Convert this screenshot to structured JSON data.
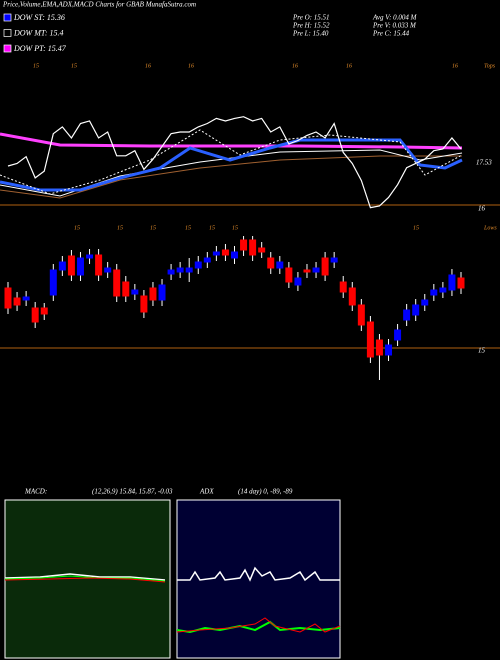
{
  "header": {
    "title": "Price,Volume,EMA,ADX,MACD Charts for GBAB MunafaSutra.com",
    "legend": [
      {
        "label": "DOW ST: 15.36",
        "color": "#0000ff"
      },
      {
        "label": "DOW MT: 15.4",
        "color": "#000000"
      },
      {
        "label": "DOW PT: 15.47",
        "color": "#ff00ff"
      }
    ],
    "stats": [
      "Pre  O: 15.51",
      "Avg V: 0.004  M",
      "Pre  H: 15.52",
      "Pre  V: 0.033 M",
      "Pre  L: 15.40",
      "Pre  C: 15.44"
    ]
  },
  "top_panel": {
    "tops_label": "Tops",
    "date_labels": [
      "15",
      "15",
      "16",
      "16",
      "16",
      "16",
      "16"
    ],
    "level_labels": [
      "17.53",
      "16"
    ]
  },
  "lows_panel": {
    "lows_label": "Lows",
    "date_labels": [
      "15",
      "15",
      "15",
      "15",
      "15",
      "15",
      "15"
    ]
  },
  "chart_data": {
    "type": "candlestick",
    "up_color": "#0000ff",
    "down_color": "#ff0000",
    "ylim": [
      14,
      16.25
    ],
    "yticks": [
      15
    ],
    "open": [
      15.6,
      15.5,
      15.48,
      15.4,
      15.4,
      15.53,
      15.78,
      15.92,
      15.73,
      15.9,
      15.93,
      15.76,
      15.78,
      15.66,
      15.54,
      15.52,
      15.6,
      15.48,
      15.74,
      15.76,
      15.76,
      15.8,
      15.86,
      15.93,
      15.98,
      15.9,
      16.08,
      16.08,
      16.0,
      15.9,
      15.8,
      15.8,
      15.63,
      15.78,
      15.76,
      15.9,
      15.86,
      15.66,
      15.6,
      15.43,
      15.26,
      15.08,
      14.93,
      15.08,
      15.28,
      15.33,
      15.43,
      15.53,
      15.56,
      15.58,
      15.7
    ],
    "high": [
      15.66,
      15.56,
      15.57,
      15.46,
      15.45,
      15.84,
      15.92,
      15.98,
      15.96,
      15.99,
      15.99,
      15.86,
      15.84,
      15.72,
      15.64,
      15.58,
      15.66,
      15.69,
      15.84,
      15.86,
      15.9,
      15.92,
      15.96,
      16.02,
      16.04,
      16.02,
      16.12,
      16.12,
      16.06,
      15.96,
      15.92,
      15.86,
      15.76,
      15.84,
      15.86,
      15.96,
      15.96,
      15.72,
      15.66,
      15.49,
      15.32,
      15.14,
      15.09,
      15.24,
      15.44,
      15.49,
      15.54,
      15.64,
      15.66,
      15.79,
      15.76
    ],
    "low": [
      15.34,
      15.37,
      15.42,
      15.2,
      15.28,
      15.47,
      15.72,
      15.67,
      15.67,
      15.84,
      15.67,
      15.7,
      15.46,
      15.46,
      15.48,
      15.3,
      15.42,
      15.42,
      15.68,
      15.7,
      15.66,
      15.74,
      15.8,
      15.87,
      15.87,
      15.84,
      15.92,
      15.87,
      15.9,
      15.74,
      15.74,
      15.6,
      15.57,
      15.7,
      15.7,
      15.67,
      15.8,
      15.5,
      15.37,
      15.17,
      14.85,
      14.68,
      14.87,
      15.02,
      15.22,
      15.27,
      15.37,
      15.47,
      15.5,
      15.52,
      15.54
    ],
    "close": [
      15.4,
      15.43,
      15.51,
      15.26,
      15.34,
      15.78,
      15.86,
      15.73,
      15.9,
      15.93,
      15.73,
      15.8,
      15.52,
      15.52,
      15.58,
      15.36,
      15.48,
      15.63,
      15.78,
      15.8,
      15.8,
      15.86,
      15.9,
      15.96,
      15.93,
      15.96,
      15.98,
      15.93,
      15.96,
      15.8,
      15.86,
      15.66,
      15.7,
      15.76,
      15.8,
      15.73,
      15.9,
      15.56,
      15.43,
      15.23,
      14.91,
      14.93,
      15.03,
      15.18,
      15.38,
      15.43,
      15.48,
      15.58,
      15.6,
      15.73,
      15.6
    ]
  },
  "macd": {
    "label": "MACD:",
    "params": "(12,26,9) 15.84, 15.87, -0.03"
  },
  "adx": {
    "label": "ADX",
    "params": "(14 day) 0, -89, -89"
  }
}
